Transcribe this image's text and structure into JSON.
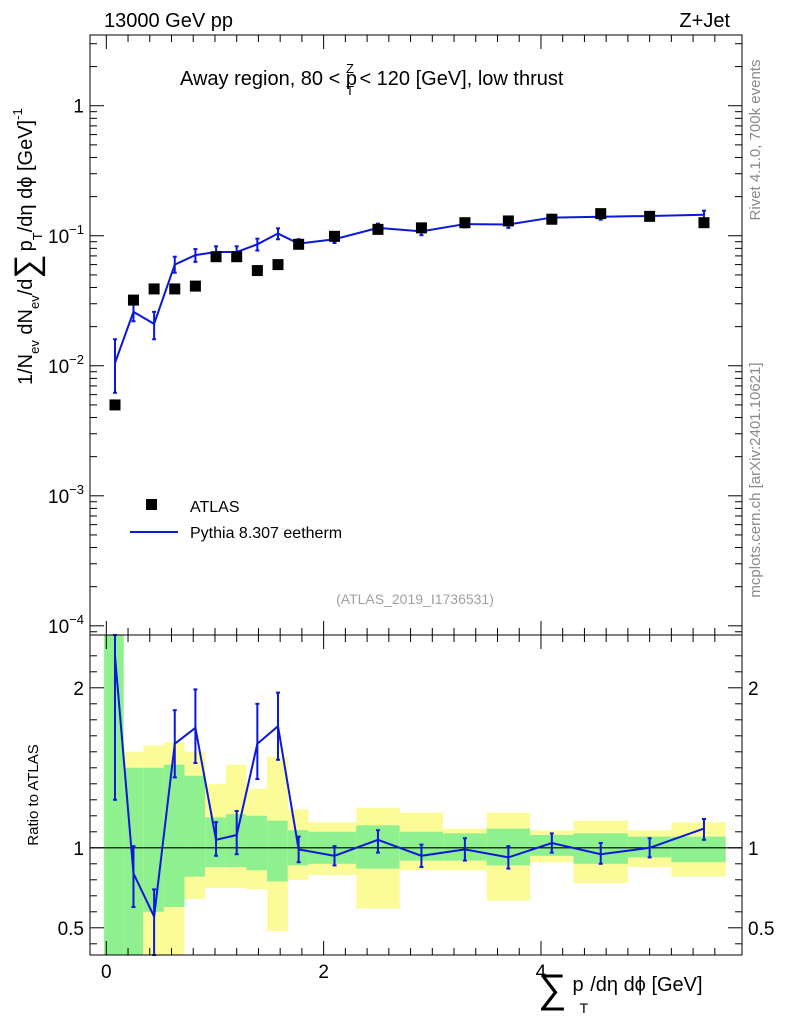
{
  "header": {
    "left": "13000 GeV pp",
    "right": "Z+Jet"
  },
  "annotation": {
    "pre": "Away region, 80 < p",
    "sup": "Z",
    "sub": "T",
    "post": " < 120 [GeV], low thrust"
  },
  "reference": "(ATLAS_2019_I1736531)",
  "side_labels": {
    "version": "Rivet 4.1.0,  700k events",
    "source": "mcplots.cern.ch [arXiv:2401.10621]"
  },
  "legend": {
    "data_label": "ATLAS",
    "mc_label": "Pythia 8.307 eetherm"
  },
  "colors": {
    "mc": "#0b18d9",
    "band_inner": "#8ef08e",
    "band_outer": "#fbfb97",
    "data": "#000000"
  },
  "chart_data": [
    {
      "type": "scatter",
      "name": "main",
      "yscale": "log",
      "xlim": [
        -0.15,
        5.85
      ],
      "ylim": [
        8.5e-05,
        3.5
      ],
      "ylabel": {
        "a": "1/N",
        "b": "ev",
        "c": " dN",
        "d": "ev",
        "e": "/d",
        "f": "∑",
        "g": "p",
        "h": "T",
        "i": "/dη dϕ  [GeV]",
        "j": "-1"
      },
      "yticks": [
        {
          "value": 0.0001,
          "base": "10",
          "exp": "−4"
        },
        {
          "value": 0.001,
          "base": "10",
          "exp": "−3"
        },
        {
          "value": 0.01,
          "base": "10",
          "exp": "−2"
        },
        {
          "value": 0.1,
          "base": "10",
          "exp": "−1"
        },
        {
          "value": 1,
          "base": "1",
          "exp": ""
        }
      ],
      "x": [
        0.08,
        0.25,
        0.44,
        0.63,
        0.82,
        1.01,
        1.2,
        1.39,
        1.58,
        1.77,
        2.1,
        2.5,
        2.9,
        3.3,
        3.7,
        4.1,
        4.55,
        5.0,
        5.5
      ],
      "data_values": [
        0.005,
        0.032,
        0.039,
        0.039,
        0.041,
        0.069,
        0.069,
        0.054,
        0.06,
        0.086,
        0.099,
        0.112,
        0.115,
        0.126,
        0.13,
        0.134,
        0.148,
        0.141,
        0.126
      ],
      "mc_values": [
        0.0105,
        0.026,
        0.021,
        0.06,
        0.071,
        0.075,
        0.075,
        0.086,
        0.104,
        0.087,
        0.094,
        0.115,
        0.108,
        0.123,
        0.122,
        0.138,
        0.14,
        0.142,
        0.145
      ],
      "mc_err_low": [
        0.0062,
        0.022,
        0.016,
        0.052,
        0.063,
        0.067,
        0.067,
        0.077,
        0.094,
        0.08,
        0.088,
        0.107,
        0.101,
        0.116,
        0.115,
        0.131,
        0.133,
        0.135,
        0.136
      ],
      "mc_err_high": [
        0.016,
        0.03,
        0.026,
        0.069,
        0.079,
        0.083,
        0.083,
        0.095,
        0.114,
        0.094,
        0.1,
        0.124,
        0.115,
        0.13,
        0.129,
        0.145,
        0.147,
        0.15,
        0.156
      ]
    },
    {
      "type": "line",
      "name": "ratio",
      "ylabel": "Ratio to ATLAS",
      "xlabel": {
        "sigma": "∑",
        "p": "p",
        "sub": "T",
        "rest": "/dη dϕ [GeV]"
      },
      "xlim": [
        -0.15,
        5.85
      ],
      "ylim": [
        0.33,
        2.33
      ],
      "xticks": [
        {
          "value": 0,
          "label": "0"
        },
        {
          "value": 2,
          "label": "2"
        },
        {
          "value": 4,
          "label": "4"
        }
      ],
      "yticks": [
        {
          "value": 0.5,
          "label": "0.5"
        },
        {
          "value": 1,
          "label": "1"
        },
        {
          "value": 2,
          "label": "2"
        }
      ],
      "bins": [
        {
          "lo": -0.02,
          "hi": 0.16,
          "inner": [
            0.33,
            2.33
          ],
          "outer": [
            0.33,
            2.33
          ]
        },
        {
          "lo": 0.16,
          "hi": 0.34,
          "inner": [
            0.33,
            1.5
          ],
          "outer": [
            0.33,
            1.6
          ]
        },
        {
          "lo": 0.34,
          "hi": 0.53,
          "inner": [
            0.6,
            1.5
          ],
          "outer": [
            0.33,
            1.64
          ]
        },
        {
          "lo": 0.53,
          "hi": 0.72,
          "inner": [
            0.63,
            1.52
          ],
          "outer": [
            0.33,
            1.66
          ]
        },
        {
          "lo": 0.72,
          "hi": 0.91,
          "inner": [
            0.82,
            1.45
          ],
          "outer": [
            0.68,
            1.6
          ]
        },
        {
          "lo": 0.91,
          "hi": 1.1,
          "inner": [
            0.88,
            1.19
          ],
          "outer": [
            0.75,
            1.4
          ]
        },
        {
          "lo": 1.1,
          "hi": 1.29,
          "inner": [
            0.88,
            1.21
          ],
          "outer": [
            0.75,
            1.52
          ]
        },
        {
          "lo": 1.29,
          "hi": 1.48,
          "inner": [
            0.86,
            1.2
          ],
          "outer": [
            0.74,
            1.37
          ]
        },
        {
          "lo": 1.48,
          "hi": 1.67,
          "inner": [
            0.79,
            1.17
          ],
          "outer": [
            0.48,
            1.57
          ]
        },
        {
          "lo": 1.67,
          "hi": 1.86,
          "inner": [
            0.89,
            1.11
          ],
          "outer": [
            0.8,
            1.24
          ]
        },
        {
          "lo": 1.86,
          "hi": 2.3,
          "inner": [
            0.9,
            1.1
          ],
          "outer": [
            0.83,
            1.16
          ]
        },
        {
          "lo": 2.3,
          "hi": 2.7,
          "inner": [
            0.87,
            1.14
          ],
          "outer": [
            0.62,
            1.25
          ]
        },
        {
          "lo": 2.7,
          "hi": 3.1,
          "inner": [
            0.92,
            1.1
          ],
          "outer": [
            0.86,
            1.22
          ]
        },
        {
          "lo": 3.1,
          "hi": 3.5,
          "inner": [
            0.92,
            1.09
          ],
          "outer": [
            0.86,
            1.12
          ]
        },
        {
          "lo": 3.5,
          "hi": 3.9,
          "inner": [
            0.89,
            1.12
          ],
          "outer": [
            0.67,
            1.22
          ]
        },
        {
          "lo": 3.9,
          "hi": 4.3,
          "inner": [
            0.95,
            1.08
          ],
          "outer": [
            0.91,
            1.11
          ]
        },
        {
          "lo": 4.3,
          "hi": 4.8,
          "inner": [
            0.9,
            1.09
          ],
          "outer": [
            0.78,
            1.17
          ]
        },
        {
          "lo": 4.8,
          "hi": 5.2,
          "inner": [
            0.94,
            1.07
          ],
          "outer": [
            0.88,
            1.11
          ]
        },
        {
          "lo": 5.2,
          "hi": 5.7,
          "inner": [
            0.91,
            1.07
          ],
          "outer": [
            0.82,
            1.16
          ]
        }
      ],
      "x": [
        0.08,
        0.25,
        0.44,
        0.63,
        0.82,
        1.01,
        1.2,
        1.39,
        1.58,
        1.77,
        2.1,
        2.5,
        2.9,
        3.3,
        3.7,
        4.1,
        4.55,
        5.0,
        5.5
      ],
      "values": [
        2.2,
        0.84,
        0.57,
        1.65,
        1.75,
        1.05,
        1.08,
        1.65,
        1.76,
        0.99,
        0.95,
        1.05,
        0.95,
        0.99,
        0.94,
        1.03,
        0.96,
        1.0,
        1.12
      ],
      "err_low": [
        1.3,
        0.63,
        0.33,
        1.44,
        1.53,
        0.95,
        0.96,
        1.43,
        1.55,
        0.91,
        0.89,
        0.97,
        0.88,
        0.92,
        0.87,
        0.97,
        0.9,
        0.94,
        1.05
      ],
      "err_high": [
        2.33,
        1.01,
        0.74,
        1.86,
        1.99,
        1.16,
        1.23,
        1.9,
        1.97,
        1.07,
        1.01,
        1.11,
        1.02,
        1.06,
        1.01,
        1.09,
        1.03,
        1.06,
        1.18
      ]
    }
  ]
}
